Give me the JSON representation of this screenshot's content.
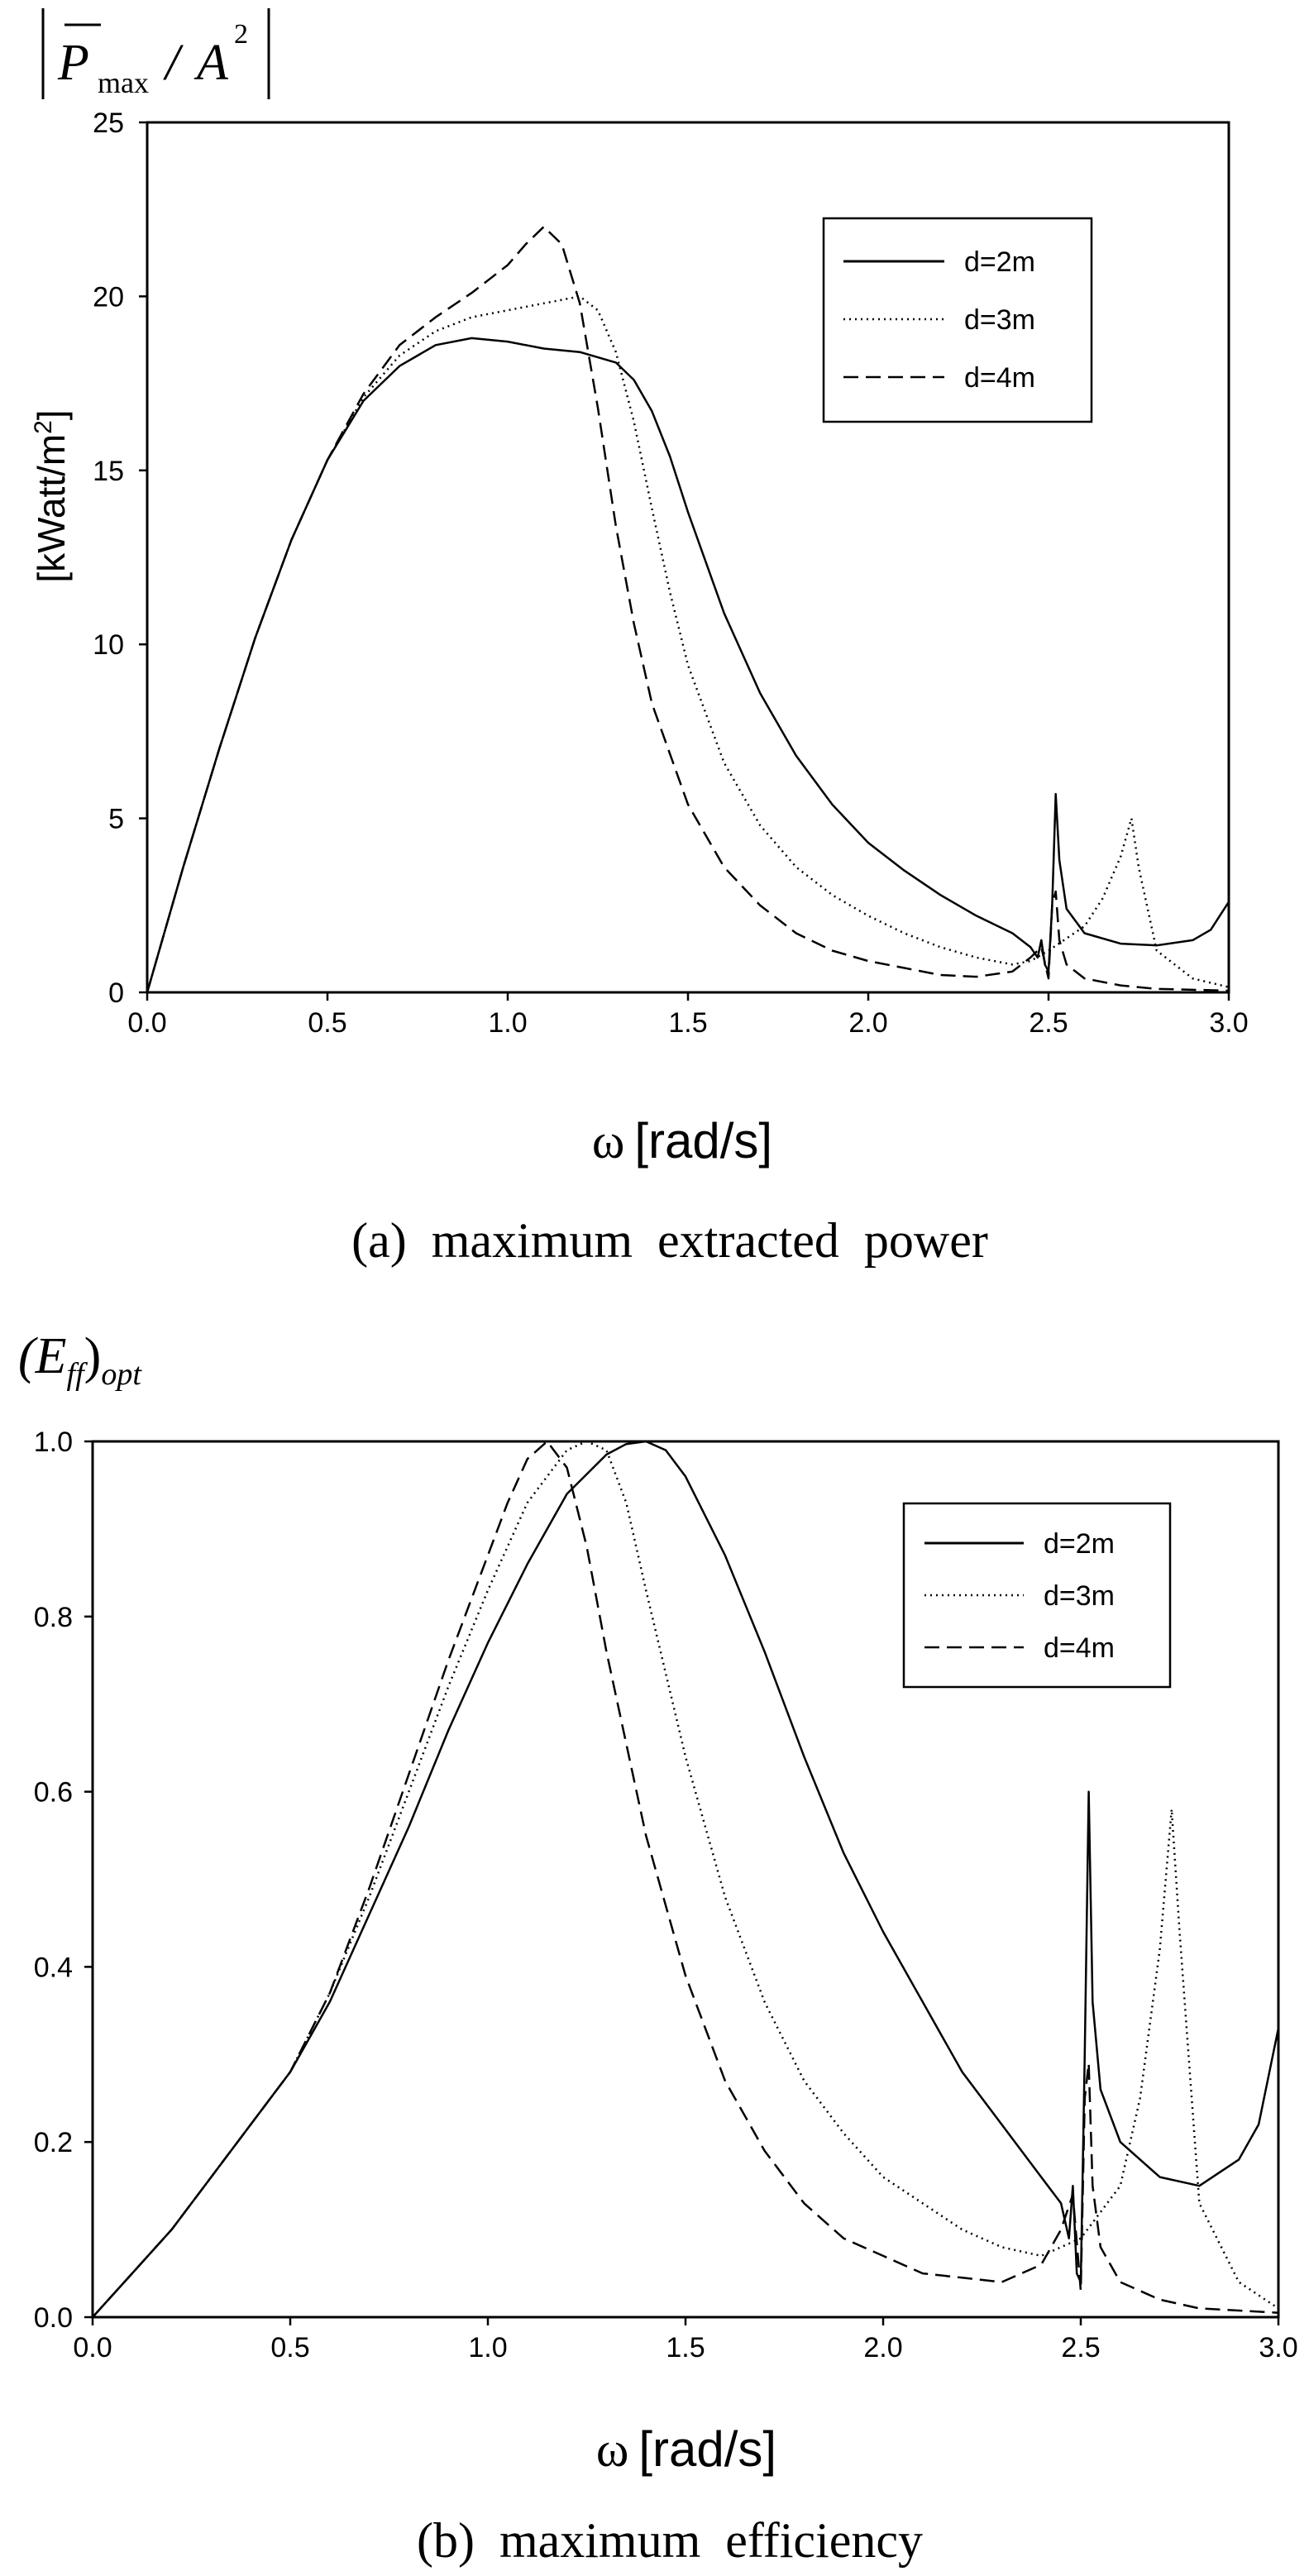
{
  "chart_data": [
    {
      "type": "line",
      "caption": "(a)  maximum  extracted  power",
      "ylabel_top_parts": [
        "P",
        "max",
        "/",
        "A",
        "2"
      ],
      "ylabel": "[kWatt/m",
      "ylabel_sup": "2",
      "ylabel_close": "]",
      "xlabel_symbol": "ω",
      "xlabel_unit": "[rad/s]",
      "xlim": [
        0,
        3
      ],
      "ylim": [
        0,
        25
      ],
      "x_ticks": [
        0.0,
        0.5,
        1.0,
        1.5,
        2.0,
        2.5,
        3.0
      ],
      "x_tick_labels": [
        "0.0",
        "0.5",
        "1.0",
        "1.5",
        "2.0",
        "2.5",
        "3.0"
      ],
      "y_ticks": [
        0,
        5,
        10,
        15,
        20,
        25
      ],
      "y_tick_labels": [
        "0",
        "5",
        "10",
        "15",
        "20",
        "25"
      ],
      "grid": false,
      "legend_position": "top-right",
      "series": [
        {
          "name": "d=2m",
          "dash": "solid",
          "points": [
            [
              0,
              0
            ],
            [
              0.1,
              3.6
            ],
            [
              0.2,
              7.0
            ],
            [
              0.3,
              10.2
            ],
            [
              0.4,
              13.0
            ],
            [
              0.5,
              15.3
            ],
            [
              0.6,
              17.0
            ],
            [
              0.7,
              18.0
            ],
            [
              0.8,
              18.6
            ],
            [
              0.9,
              18.8
            ],
            [
              1.0,
              18.7
            ],
            [
              1.1,
              18.5
            ],
            [
              1.2,
              18.4
            ],
            [
              1.3,
              18.1
            ],
            [
              1.35,
              17.6
            ],
            [
              1.4,
              16.7
            ],
            [
              1.45,
              15.4
            ],
            [
              1.5,
              13.8
            ],
            [
              1.6,
              10.9
            ],
            [
              1.7,
              8.6
            ],
            [
              1.8,
              6.8
            ],
            [
              1.9,
              5.4
            ],
            [
              2.0,
              4.3
            ],
            [
              2.1,
              3.5
            ],
            [
              2.2,
              2.8
            ],
            [
              2.3,
              2.2
            ],
            [
              2.4,
              1.7
            ],
            [
              2.45,
              1.3
            ],
            [
              2.47,
              1.0
            ],
            [
              2.48,
              1.5
            ],
            [
              2.49,
              0.8
            ],
            [
              2.5,
              0.6
            ],
            [
              2.51,
              2.5
            ],
            [
              2.52,
              5.7
            ],
            [
              2.53,
              3.8
            ],
            [
              2.55,
              2.4
            ],
            [
              2.6,
              1.7
            ],
            [
              2.7,
              1.4
            ],
            [
              2.8,
              1.35
            ],
            [
              2.9,
              1.5
            ],
            [
              2.95,
              1.8
            ],
            [
              3.0,
              2.6
            ]
          ]
        },
        {
          "name": "d=3m",
          "dash": "dotted",
          "points": [
            [
              0,
              0
            ],
            [
              0.1,
              3.6
            ],
            [
              0.2,
              7.0
            ],
            [
              0.3,
              10.2
            ],
            [
              0.4,
              13.0
            ],
            [
              0.5,
              15.3
            ],
            [
              0.6,
              17.1
            ],
            [
              0.7,
              18.3
            ],
            [
              0.8,
              19.0
            ],
            [
              0.9,
              19.4
            ],
            [
              1.0,
              19.6
            ],
            [
              1.1,
              19.8
            ],
            [
              1.2,
              20.0
            ],
            [
              1.25,
              19.6
            ],
            [
              1.3,
              18.4
            ],
            [
              1.35,
              16.4
            ],
            [
              1.4,
              13.9
            ],
            [
              1.45,
              11.5
            ],
            [
              1.5,
              9.4
            ],
            [
              1.6,
              6.6
            ],
            [
              1.7,
              4.8
            ],
            [
              1.8,
              3.6
            ],
            [
              1.9,
              2.8
            ],
            [
              2.0,
              2.2
            ],
            [
              2.1,
              1.7
            ],
            [
              2.2,
              1.3
            ],
            [
              2.3,
              1.0
            ],
            [
              2.4,
              0.8
            ],
            [
              2.45,
              0.9
            ],
            [
              2.5,
              1.2
            ],
            [
              2.6,
              1.9
            ],
            [
              2.65,
              2.7
            ],
            [
              2.7,
              3.9
            ],
            [
              2.73,
              5.0
            ],
            [
              2.75,
              3.6
            ],
            [
              2.8,
              1.2
            ],
            [
              2.9,
              0.4
            ],
            [
              3.0,
              0.15
            ]
          ]
        },
        {
          "name": "d=4m",
          "dash": "dashed",
          "points": [
            [
              0,
              0
            ],
            [
              0.1,
              3.6
            ],
            [
              0.2,
              7.0
            ],
            [
              0.3,
              10.2
            ],
            [
              0.4,
              13.0
            ],
            [
              0.5,
              15.3
            ],
            [
              0.6,
              17.2
            ],
            [
              0.7,
              18.6
            ],
            [
              0.8,
              19.4
            ],
            [
              0.9,
              20.1
            ],
            [
              1.0,
              20.9
            ],
            [
              1.05,
              21.5
            ],
            [
              1.1,
              22.0
            ],
            [
              1.15,
              21.5
            ],
            [
              1.2,
              19.8
            ],
            [
              1.25,
              16.8
            ],
            [
              1.3,
              13.4
            ],
            [
              1.35,
              10.6
            ],
            [
              1.4,
              8.3
            ],
            [
              1.5,
              5.4
            ],
            [
              1.6,
              3.6
            ],
            [
              1.7,
              2.5
            ],
            [
              1.8,
              1.7
            ],
            [
              1.9,
              1.2
            ],
            [
              2.0,
              0.9
            ],
            [
              2.1,
              0.7
            ],
            [
              2.2,
              0.5
            ],
            [
              2.3,
              0.45
            ],
            [
              2.4,
              0.6
            ],
            [
              2.45,
              1.0
            ],
            [
              2.48,
              1.3
            ],
            [
              2.5,
              0.4
            ],
            [
              2.51,
              2.5
            ],
            [
              2.52,
              2.9
            ],
            [
              2.53,
              1.5
            ],
            [
              2.55,
              0.8
            ],
            [
              2.6,
              0.4
            ],
            [
              2.7,
              0.2
            ],
            [
              2.8,
              0.1
            ],
            [
              3.0,
              0.05
            ]
          ]
        }
      ]
    },
    {
      "type": "line",
      "caption": "(b)  maximum  efficiency",
      "ylabel_top_parts": [
        "(E",
        "ff",
        ")",
        "opt"
      ],
      "xlabel_symbol": "ω",
      "xlabel_unit": "[rad/s]",
      "xlim": [
        0,
        3
      ],
      "ylim": [
        0,
        1
      ],
      "x_ticks": [
        0.0,
        0.5,
        1.0,
        1.5,
        2.0,
        2.5,
        3.0
      ],
      "x_tick_labels": [
        "0.0",
        "0.5",
        "1.0",
        "1.5",
        "2.0",
        "2.5",
        "3.0"
      ],
      "y_ticks": [
        0,
        0.2,
        0.4,
        0.6,
        0.8,
        1.0
      ],
      "y_tick_labels": [
        "0.0",
        "0.2",
        "0.4",
        "0.6",
        "0.8",
        "1.0"
      ],
      "grid": false,
      "legend_position": "top-right",
      "series": [
        {
          "name": "d=2m",
          "dash": "solid",
          "points": [
            [
              0,
              0
            ],
            [
              0.1,
              0.05
            ],
            [
              0.2,
              0.1
            ],
            [
              0.3,
              0.16
            ],
            [
              0.4,
              0.22
            ],
            [
              0.5,
              0.28
            ],
            [
              0.6,
              0.36
            ],
            [
              0.7,
              0.46
            ],
            [
              0.8,
              0.56
            ],
            [
              0.9,
              0.67
            ],
            [
              1.0,
              0.77
            ],
            [
              1.1,
              0.86
            ],
            [
              1.2,
              0.94
            ],
            [
              1.3,
              0.985
            ],
            [
              1.35,
              0.997
            ],
            [
              1.4,
              1.0
            ],
            [
              1.45,
              0.99
            ],
            [
              1.5,
              0.96
            ],
            [
              1.6,
              0.87
            ],
            [
              1.7,
              0.76
            ],
            [
              1.8,
              0.64
            ],
            [
              1.9,
              0.53
            ],
            [
              2.0,
              0.44
            ],
            [
              2.1,
              0.36
            ],
            [
              2.2,
              0.28
            ],
            [
              2.3,
              0.22
            ],
            [
              2.4,
              0.16
            ],
            [
              2.45,
              0.13
            ],
            [
              2.47,
              0.09
            ],
            [
              2.48,
              0.15
            ],
            [
              2.49,
              0.05
            ],
            [
              2.5,
              0.04
            ],
            [
              2.51,
              0.3
            ],
            [
              2.52,
              0.6
            ],
            [
              2.53,
              0.36
            ],
            [
              2.55,
              0.26
            ],
            [
              2.6,
              0.2
            ],
            [
              2.7,
              0.16
            ],
            [
              2.8,
              0.15
            ],
            [
              2.9,
              0.18
            ],
            [
              2.95,
              0.22
            ],
            [
              3.0,
              0.33
            ]
          ]
        },
        {
          "name": "d=3m",
          "dash": "dotted",
          "points": [
            [
              0,
              0
            ],
            [
              0.1,
              0.05
            ],
            [
              0.2,
              0.1
            ],
            [
              0.3,
              0.16
            ],
            [
              0.4,
              0.22
            ],
            [
              0.5,
              0.28
            ],
            [
              0.6,
              0.37
            ],
            [
              0.7,
              0.48
            ],
            [
              0.8,
              0.6
            ],
            [
              0.9,
              0.72
            ],
            [
              1.0,
              0.83
            ],
            [
              1.1,
              0.93
            ],
            [
              1.2,
              0.99
            ],
            [
              1.25,
              1.0
            ],
            [
              1.3,
              0.99
            ],
            [
              1.35,
              0.93
            ],
            [
              1.4,
              0.83
            ],
            [
              1.5,
              0.64
            ],
            [
              1.6,
              0.48
            ],
            [
              1.7,
              0.36
            ],
            [
              1.8,
              0.27
            ],
            [
              1.9,
              0.21
            ],
            [
              2.0,
              0.16
            ],
            [
              2.1,
              0.13
            ],
            [
              2.2,
              0.1
            ],
            [
              2.3,
              0.08
            ],
            [
              2.4,
              0.07
            ],
            [
              2.45,
              0.08
            ],
            [
              2.5,
              0.09
            ],
            [
              2.6,
              0.15
            ],
            [
              2.65,
              0.25
            ],
            [
              2.7,
              0.42
            ],
            [
              2.73,
              0.58
            ],
            [
              2.75,
              0.44
            ],
            [
              2.8,
              0.13
            ],
            [
              2.9,
              0.04
            ],
            [
              3.0,
              0.01
            ]
          ]
        },
        {
          "name": "d=4m",
          "dash": "dashed",
          "points": [
            [
              0,
              0
            ],
            [
              0.1,
              0.05
            ],
            [
              0.2,
              0.1
            ],
            [
              0.3,
              0.16
            ],
            [
              0.4,
              0.22
            ],
            [
              0.5,
              0.28
            ],
            [
              0.6,
              0.37
            ],
            [
              0.7,
              0.49
            ],
            [
              0.8,
              0.62
            ],
            [
              0.9,
              0.75
            ],
            [
              1.0,
              0.87
            ],
            [
              1.05,
              0.93
            ],
            [
              1.1,
              0.98
            ],
            [
              1.15,
              1.0
            ],
            [
              1.2,
              0.97
            ],
            [
              1.25,
              0.88
            ],
            [
              1.3,
              0.76
            ],
            [
              1.4,
              0.55
            ],
            [
              1.5,
              0.39
            ],
            [
              1.6,
              0.27
            ],
            [
              1.7,
              0.19
            ],
            [
              1.8,
              0.13
            ],
            [
              1.9,
              0.09
            ],
            [
              2.0,
              0.07
            ],
            [
              2.1,
              0.05
            ],
            [
              2.2,
              0.045
            ],
            [
              2.3,
              0.04
            ],
            [
              2.4,
              0.06
            ],
            [
              2.45,
              0.1
            ],
            [
              2.48,
              0.14
            ],
            [
              2.5,
              0.03
            ],
            [
              2.51,
              0.25
            ],
            [
              2.52,
              0.29
            ],
            [
              2.53,
              0.15
            ],
            [
              2.55,
              0.08
            ],
            [
              2.6,
              0.04
            ],
            [
              2.7,
              0.02
            ],
            [
              2.8,
              0.01
            ],
            [
              3.0,
              0.005
            ]
          ]
        }
      ]
    }
  ]
}
